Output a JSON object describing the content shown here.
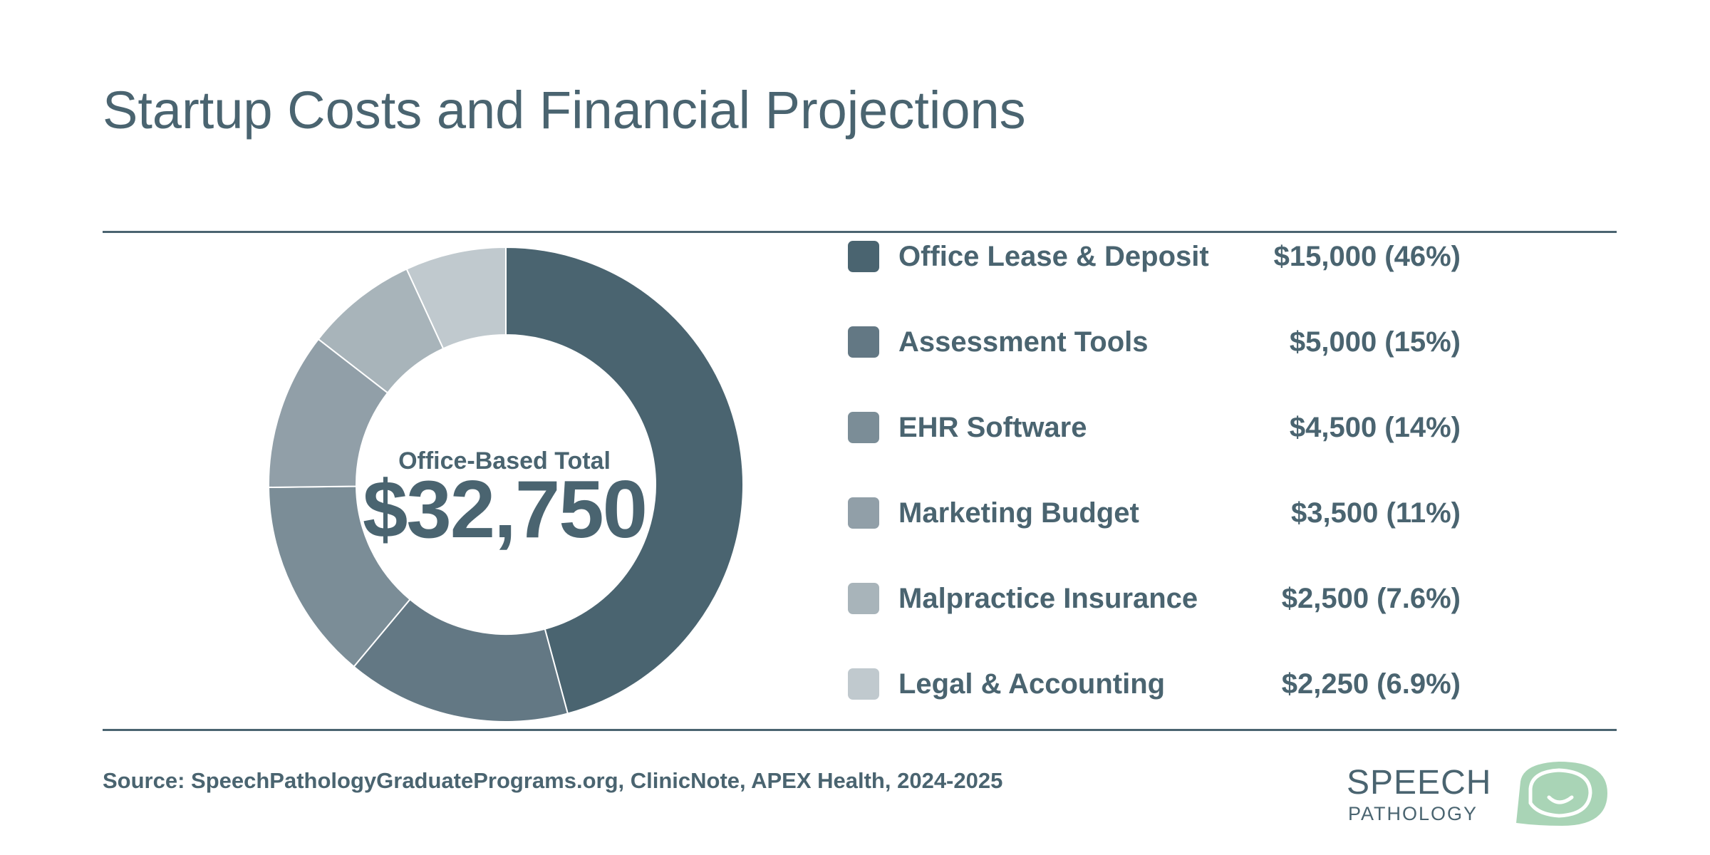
{
  "title": "Startup Costs and Financial Projections",
  "center": {
    "caption": "Office-Based Total",
    "total": "$32,750"
  },
  "source": "Source: SpeechPathologyGraduatePrograms.org, ClinicNote, APEX Health, 2024-2025",
  "logo": {
    "line1": "SPEECH",
    "line2": "PATHOLOGY"
  },
  "legend": [
    {
      "label": "Office Lease & Deposit",
      "value": "$15,000 (46%)"
    },
    {
      "label": "Assessment Tools",
      "value": "$5,000 (15%)"
    },
    {
      "label": "EHR Software",
      "value": "$4,500 (14%)"
    },
    {
      "label": "Marketing Budget",
      "value": "$3,500 (11%)"
    },
    {
      "label": "Malpractice Insurance",
      "value": "$2,500 (7.6%)"
    },
    {
      "label": "Legal & Accounting",
      "value": "$2,250 (6.9%)"
    }
  ],
  "chart_data": {
    "type": "pie",
    "title": "",
    "categories": [
      "Office Lease & Deposit",
      "Assessment Tools",
      "EHR Software",
      "Marketing Budget",
      "Malpractice Insurance",
      "Legal & Accounting"
    ],
    "values": [
      15000,
      5000,
      4500,
      3500,
      2500,
      2250
    ],
    "colors": [
      "#4a6470",
      "#637884",
      "#7b8d97",
      "#919fa8",
      "#a8b4ba",
      "#c0c9ce"
    ],
    "donut": true,
    "legend_position": "right"
  }
}
